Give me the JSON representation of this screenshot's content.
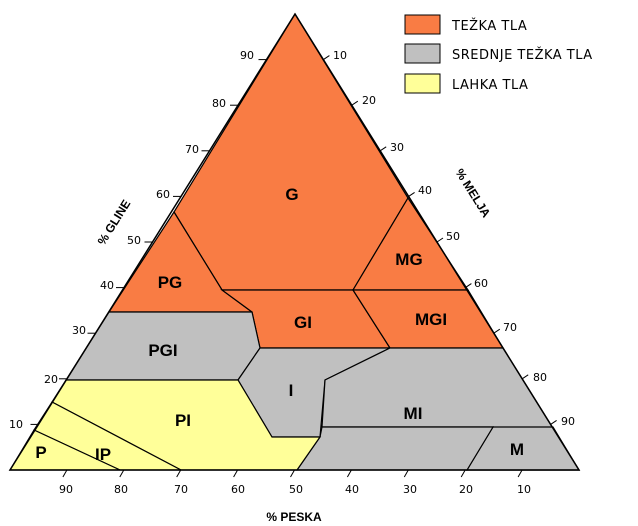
{
  "legend": [
    {
      "label": "TEŽKA TLA",
      "color": "#f97c44"
    },
    {
      "label": "SREDNJE TEŽKA TLA",
      "color": "#c0c0c0"
    },
    {
      "label": "LAHKA TLA",
      "color": "#ffff99"
    }
  ],
  "axes": {
    "left": "% GLINE",
    "right": "% MELJA",
    "bottom": "% PESKA"
  },
  "ticks": {
    "left": [
      "10",
      "20",
      "30",
      "40",
      "50",
      "60",
      "70",
      "80",
      "90"
    ],
    "right": [
      "10",
      "20",
      "30",
      "40",
      "50",
      "60",
      "70",
      "80",
      "90"
    ],
    "bottom": [
      "90",
      "80",
      "70",
      "60",
      "50",
      "40",
      "30",
      "20",
      "10"
    ]
  },
  "regions": [
    {
      "label": "G",
      "class": "heavy"
    },
    {
      "label": "PG",
      "class": "heavy"
    },
    {
      "label": "MG",
      "class": "heavy"
    },
    {
      "label": "GI",
      "class": "heavy"
    },
    {
      "label": "MGI",
      "class": "heavy"
    },
    {
      "label": "PGI",
      "class": "medium"
    },
    {
      "label": "I",
      "class": "medium"
    },
    {
      "label": "MI",
      "class": "medium"
    },
    {
      "label": "M",
      "class": "medium"
    },
    {
      "label": "PI",
      "class": "light"
    },
    {
      "label": "IP",
      "class": "light"
    },
    {
      "label": "P",
      "class": "light"
    }
  ],
  "colors": {
    "heavy": "#f97c44",
    "medium": "#c0c0c0",
    "light": "#ffff99"
  }
}
